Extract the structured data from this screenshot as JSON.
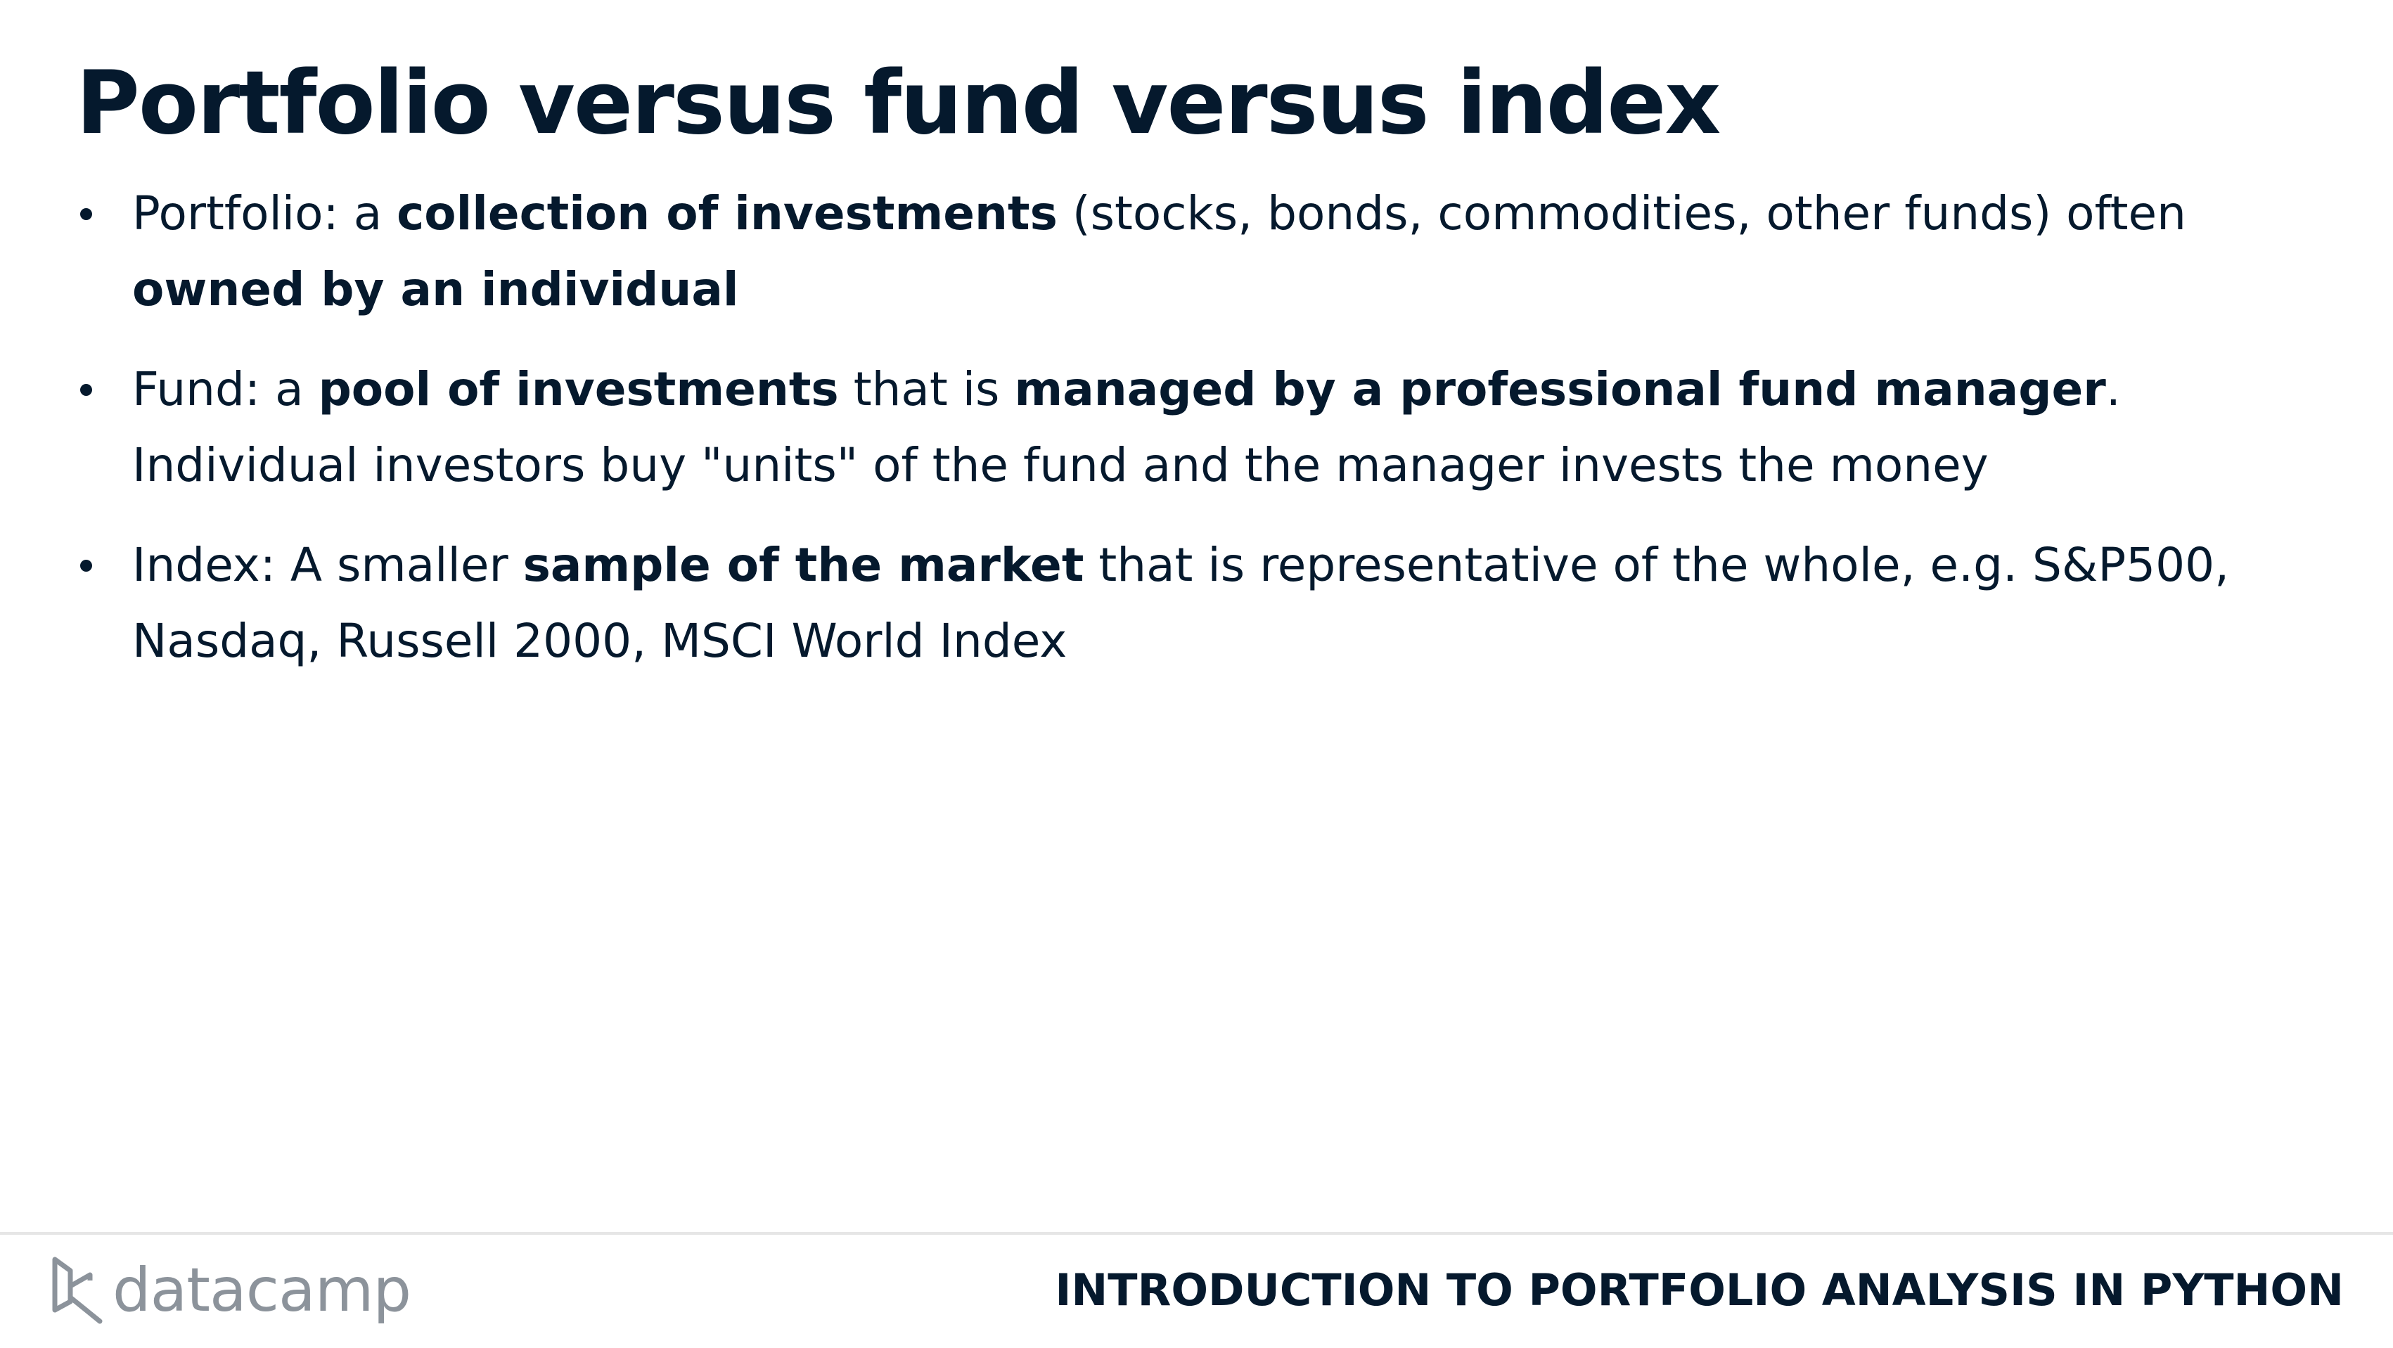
{
  "slide": {
    "title": "Portfolio versus fund versus index",
    "bullets": [
      {
        "segments": [
          {
            "text": "Portfolio: a ",
            "bold": false
          },
          {
            "text": "collection of investments",
            "bold": true
          },
          {
            "text": " (stocks, bonds, commodities, other funds) often ",
            "bold": false
          },
          {
            "text": "owned by an individual",
            "bold": true
          }
        ]
      },
      {
        "segments": [
          {
            "text": "Fund: a ",
            "bold": false
          },
          {
            "text": "pool of investments",
            "bold": true
          },
          {
            "text": " that is ",
            "bold": false
          },
          {
            "text": "managed by a professional fund manager",
            "bold": true
          },
          {
            "text": ". Individual investors buy \"units\" of the fund and the manager invests the money",
            "bold": false
          }
        ]
      },
      {
        "segments": [
          {
            "text": "Index: A smaller ",
            "bold": false
          },
          {
            "text": "sample of the market",
            "bold": true
          },
          {
            "text": " that is representative of the whole, e.g. S&P500, Nasdaq, Russell 2000, MSCI World Index",
            "bold": false
          }
        ]
      }
    ]
  },
  "footer": {
    "logo_text": "datacamp",
    "course_title": "INTRODUCTION TO PORTFOLIO ANALYSIS IN PYTHON"
  },
  "icons": {
    "logo": "datacamp-logo-icon",
    "bullet": "bullet-dot-icon"
  },
  "colors": {
    "text": "#05192d",
    "logo_gray": "#8c939b",
    "divider": "#e6e6e6",
    "background": "#ffffff"
  }
}
